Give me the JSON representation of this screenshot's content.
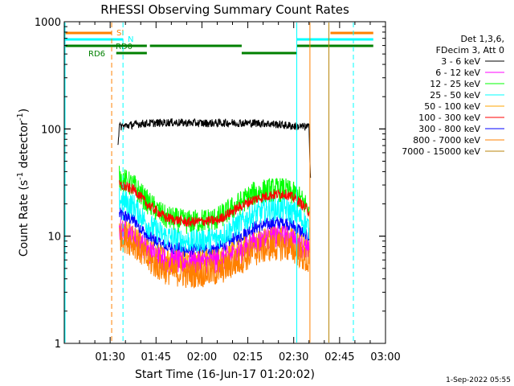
{
  "chart_data": {
    "type": "line",
    "title": "RHESSI Observing Summary Count Rates",
    "xlabel": "Start Time (16-Jun-17 01:20:02)",
    "ylabel_main": "Count Rate (s",
    "ylabel_sup1": "-1",
    "ylabel_mid": " detector",
    "ylabel_sup2": "-1",
    "ylabel_end": ")",
    "yscale": "log",
    "ylim": [
      1,
      1000
    ],
    "xlim_minutes": [
      -5,
      100
    ],
    "x_unit": "minutes since 01:20",
    "x_ticks": [
      {
        "label": "01:30",
        "minutes": 10
      },
      {
        "label": "01:45",
        "minutes": 25
      },
      {
        "label": "02:00",
        "minutes": 40
      },
      {
        "label": "02:15",
        "minutes": 55
      },
      {
        "label": "02:30",
        "minutes": 70
      },
      {
        "label": "02:45",
        "minutes": 85
      },
      {
        "label": "03:00",
        "minutes": 100
      }
    ],
    "y_ticks": [
      {
        "label": "1",
        "value": 1
      },
      {
        "label": "10",
        "value": 10
      },
      {
        "label": "100",
        "value": 100
      },
      {
        "label": "1000",
        "value": 1000
      }
    ],
    "legend_header": [
      "Det 1,3,6,",
      "FDecim 3, Att 0"
    ],
    "data_start_min": 12.5,
    "data_end_min": 75.5,
    "series": [
      {
        "name": "3 - 6 keV",
        "color": "#000000",
        "points": [
          [
            12.5,
            70
          ],
          [
            13,
            105
          ],
          [
            20,
            112
          ],
          [
            30,
            115
          ],
          [
            40,
            113
          ],
          [
            50,
            114
          ],
          [
            60,
            113
          ],
          [
            65,
            110
          ],
          [
            70,
            106
          ],
          [
            75,
            104
          ],
          [
            75.5,
            35
          ]
        ],
        "noise": 0.04
      },
      {
        "name": "6 - 12 keV",
        "color": "#ff00ff",
        "points": [
          [
            13,
            11.5
          ],
          [
            18,
            9.5
          ],
          [
            22,
            7.3
          ],
          [
            28,
            6.0
          ],
          [
            35,
            5.6
          ],
          [
            45,
            5.8
          ],
          [
            52,
            7.0
          ],
          [
            57,
            8.5
          ],
          [
            62,
            9.5
          ],
          [
            67,
            9.8
          ],
          [
            71,
            8.8
          ],
          [
            75,
            7.0
          ]
        ],
        "noise": 0.12
      },
      {
        "name": "12 - 25 keV",
        "color": "#00ff00",
        "points": [
          [
            13,
            35
          ],
          [
            18,
            29
          ],
          [
            22,
            21
          ],
          [
            28,
            15
          ],
          [
            35,
            13.5
          ],
          [
            45,
            14.5
          ],
          [
            52,
            20
          ],
          [
            57,
            25
          ],
          [
            62,
            27
          ],
          [
            67,
            27
          ],
          [
            71,
            24
          ],
          [
            75,
            18
          ]
        ],
        "noise": 0.12
      },
      {
        "name": "25 - 50 keV",
        "color": "#00ffff",
        "points": [
          [
            13,
            22
          ],
          [
            18,
            19
          ],
          [
            22,
            13
          ],
          [
            28,
            10
          ],
          [
            35,
            9
          ],
          [
            45,
            9.5
          ],
          [
            52,
            13
          ],
          [
            57,
            16
          ],
          [
            62,
            18
          ],
          [
            67,
            18
          ],
          [
            71,
            16
          ],
          [
            75,
            12
          ]
        ],
        "noise": 0.12
      },
      {
        "name": "50 - 100 keV",
        "color": "#ffa500",
        "points": [
          [
            13,
            12
          ],
          [
            18,
            10
          ],
          [
            22,
            7.8
          ],
          [
            28,
            6.4
          ],
          [
            35,
            6
          ],
          [
            45,
            6.2
          ],
          [
            52,
            7.5
          ],
          [
            57,
            9
          ],
          [
            62,
            10
          ],
          [
            67,
            10.3
          ],
          [
            71,
            9.2
          ],
          [
            75,
            7.4
          ]
        ],
        "noise": 0.1
      },
      {
        "name": "100 - 300 keV",
        "color": "#ff0000",
        "points": [
          [
            13,
            30
          ],
          [
            18,
            27
          ],
          [
            22,
            20
          ],
          [
            28,
            15
          ],
          [
            35,
            13.5
          ],
          [
            45,
            14
          ],
          [
            52,
            18.5
          ],
          [
            57,
            22
          ],
          [
            62,
            24
          ],
          [
            67,
            25
          ],
          [
            71,
            22
          ],
          [
            75,
            17
          ]
        ],
        "noise": 0.05
      },
      {
        "name": "300 - 800 keV",
        "color": "#0000ff",
        "points": [
          [
            13,
            16
          ],
          [
            18,
            14
          ],
          [
            22,
            10
          ],
          [
            28,
            8
          ],
          [
            35,
            7.3
          ],
          [
            45,
            7.6
          ],
          [
            52,
            9.8
          ],
          [
            57,
            12
          ],
          [
            62,
            13
          ],
          [
            67,
            13.5
          ],
          [
            71,
            12
          ],
          [
            75,
            9.5
          ]
        ],
        "noise": 0.07
      },
      {
        "name": "800 - 7000 keV",
        "color": "#ff8000",
        "points": [
          [
            13,
            10
          ],
          [
            18,
            8.5
          ],
          [
            22,
            6
          ],
          [
            28,
            4.8
          ],
          [
            35,
            4.4
          ],
          [
            45,
            4.6
          ],
          [
            52,
            5.8
          ],
          [
            57,
            7
          ],
          [
            62,
            7.8
          ],
          [
            67,
            8
          ],
          [
            71,
            7.2
          ],
          [
            75,
            5.5
          ]
        ],
        "noise": 0.14
      },
      {
        "name": "7000 - 15000 keV",
        "color": "#b8860b",
        "points": [],
        "noise": 0
      }
    ],
    "vertical_lines": [
      {
        "minutes": -5,
        "color": "#00ffff",
        "dashed": false
      },
      {
        "minutes": 10.5,
        "color": "#ff8000",
        "dashed": true
      },
      {
        "minutes": 14.2,
        "color": "#00ffff",
        "dashed": true
      },
      {
        "minutes": 71.0,
        "color": "#00ffff",
        "dashed": false
      },
      {
        "minutes": 75.3,
        "color": "#ff8000",
        "dashed": false
      },
      {
        "minutes": 81.5,
        "color": "#b8860b",
        "dashed": false
      },
      {
        "minutes": 89.5,
        "color": "#00ffff",
        "dashed": true
      }
    ],
    "flag_bars": [
      {
        "label": "SI",
        "color": "#ff8000",
        "level": 0,
        "segments": [
          [
            -5,
            10.5
          ],
          [
            82,
            96
          ]
        ]
      },
      {
        "label": "N",
        "color": "#00ffff",
        "level": 1,
        "segments": [
          [
            -5,
            14.2
          ],
          [
            71,
            96
          ]
        ]
      },
      {
        "label": "RD0",
        "color": "#008000",
        "level": 2,
        "segments": [
          [
            -5,
            22
          ],
          [
            23,
            53
          ],
          [
            71,
            96
          ]
        ]
      },
      {
        "label": "RD6",
        "color": "#008000",
        "level": 3,
        "segments": [
          [
            12,
            22
          ],
          [
            53,
            71
          ]
        ]
      }
    ],
    "grid": false,
    "legend_position": "right"
  },
  "footer": {
    "date": "1-Sep-2022 05:55"
  }
}
